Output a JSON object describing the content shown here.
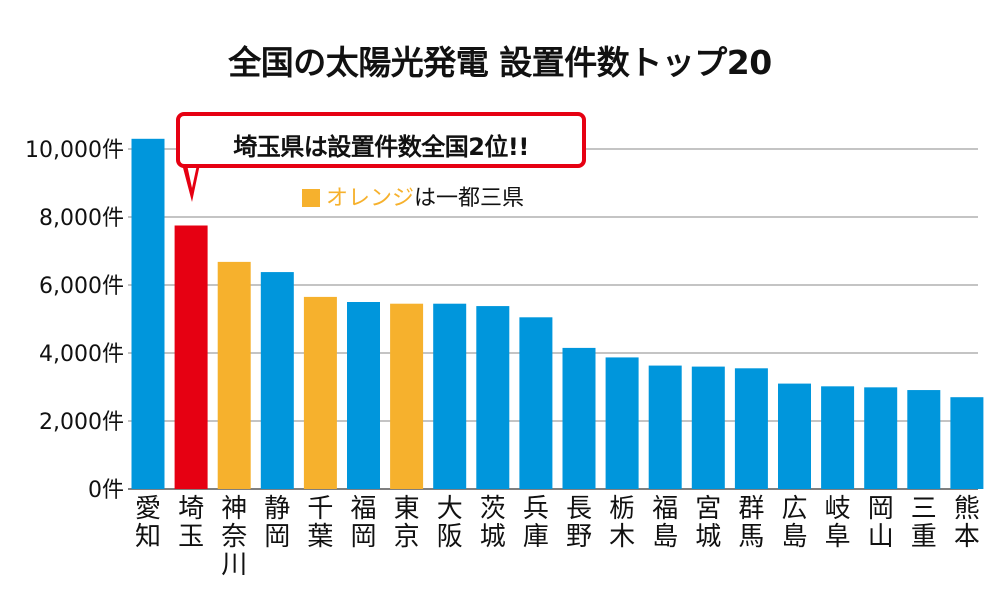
{
  "chart_data": {
    "type": "bar",
    "title": "全国の太陽光発電 設置件数トップ20",
    "categories": [
      "愛知",
      "埼玉",
      "神奈川",
      "静岡",
      "千葉",
      "福岡",
      "東京",
      "大阪",
      "茨城",
      "兵庫",
      "長野",
      "栃木",
      "福島",
      "宮城",
      "群馬",
      "広島",
      "岐阜",
      "岡山",
      "三重",
      "熊本"
    ],
    "values": [
      10300,
      7750,
      6680,
      6380,
      5650,
      5500,
      5450,
      5450,
      5380,
      5050,
      4150,
      3870,
      3630,
      3600,
      3550,
      3100,
      3020,
      2990,
      2910,
      2700
    ],
    "bar_colors": [
      "#0096dc",
      "#e60012",
      "#f6b12d",
      "#0096dc",
      "#f6b12d",
      "#0096dc",
      "#f6b12d",
      "#0096dc",
      "#0096dc",
      "#0096dc",
      "#0096dc",
      "#0096dc",
      "#0096dc",
      "#0096dc",
      "#0096dc",
      "#0096dc",
      "#0096dc",
      "#0096dc",
      "#0096dc",
      "#0096dc"
    ],
    "y_ticks": [
      "0件",
      "2,000件",
      "4,000件",
      "6,000件",
      "8,000件",
      "10,000件"
    ],
    "y_tick_values": [
      0,
      2000,
      4000,
      6000,
      8000,
      10000
    ],
    "ylim": [
      0,
      10000
    ],
    "grid": true,
    "xlabel": "",
    "ylabel": "",
    "callout": "埼玉県は設置件数全国2位!!",
    "legend_note": {
      "word": "オレンジ",
      "rest": "は一都三県"
    },
    "colors": {
      "default": "#0096dc",
      "highlight": "#e60012",
      "orange": "#f6b12d",
      "grid": "#888888"
    }
  }
}
